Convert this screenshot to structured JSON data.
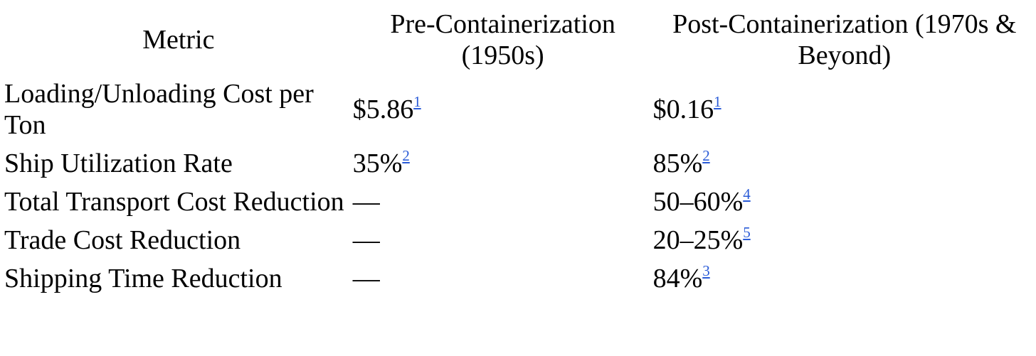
{
  "table": {
    "headers": [
      "Metric",
      "Pre-Containerization (1950s)",
      "Post-Containerization (1970s & Beyond)"
    ],
    "rows": [
      {
        "metric": "Loading/Unloading Cost per Ton",
        "pre": {
          "value": "$5.86",
          "ref": "1"
        },
        "post": {
          "value": "$0.16",
          "ref": "1"
        }
      },
      {
        "metric": "Ship Utilization Rate",
        "pre": {
          "value": "35%",
          "ref": "2"
        },
        "post": {
          "value": "85%",
          "ref": "2"
        }
      },
      {
        "metric": "Total Transport Cost Reduction",
        "pre": {
          "value": "—",
          "ref": ""
        },
        "post": {
          "value": "50–60%",
          "ref": "4"
        }
      },
      {
        "metric": "Trade Cost Reduction",
        "pre": {
          "value": "—",
          "ref": ""
        },
        "post": {
          "value": "20–25%",
          "ref": "5"
        }
      },
      {
        "metric": "Shipping Time Reduction",
        "pre": {
          "value": "—",
          "ref": ""
        },
        "post": {
          "value": "84%",
          "ref": "3"
        }
      }
    ]
  },
  "colors": {
    "text": "#000000",
    "link": "#2a5bd7",
    "background": "#ffffff"
  }
}
